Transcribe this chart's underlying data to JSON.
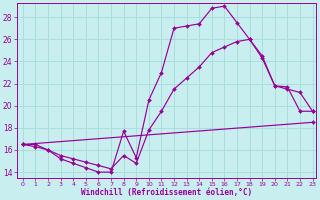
{
  "xlabel": "Windchill (Refroidissement éolien,°C)",
  "bg_color": "#c8eef0",
  "line_color": "#990099",
  "grid_color": "#aadddd",
  "x_min": 0,
  "x_max": 23,
  "y_min": 13.5,
  "y_max": 29.3,
  "yticks": [
    14,
    16,
    18,
    20,
    22,
    24,
    26,
    28
  ],
  "line1_x": [
    0,
    1,
    2,
    3,
    4,
    5,
    6,
    7,
    8,
    9,
    10,
    11,
    12,
    13,
    14,
    15,
    16,
    17,
    18,
    19,
    20,
    21,
    22,
    23
  ],
  "line1_y": [
    16.5,
    16.5,
    16.0,
    15.2,
    14.8,
    14.4,
    14.0,
    14.0,
    17.7,
    15.3,
    20.5,
    23.0,
    27.0,
    27.2,
    27.4,
    28.8,
    29.0,
    27.5,
    26.0,
    24.5,
    21.8,
    21.7,
    19.5,
    19.5
  ],
  "line2_x": [
    0,
    1,
    2,
    3,
    4,
    5,
    6,
    7,
    8,
    9,
    10,
    11,
    12,
    13,
    14,
    15,
    16,
    17,
    18,
    19,
    20,
    21,
    22,
    23
  ],
  "line2_y": [
    16.5,
    16.3,
    16.0,
    15.5,
    15.2,
    14.9,
    14.6,
    14.3,
    15.5,
    14.8,
    17.8,
    19.5,
    21.5,
    22.5,
    23.5,
    24.8,
    25.3,
    25.8,
    26.0,
    24.3,
    21.8,
    21.5,
    21.2,
    19.5
  ],
  "line3_x": [
    0,
    23
  ],
  "line3_y": [
    16.5,
    18.5
  ]
}
